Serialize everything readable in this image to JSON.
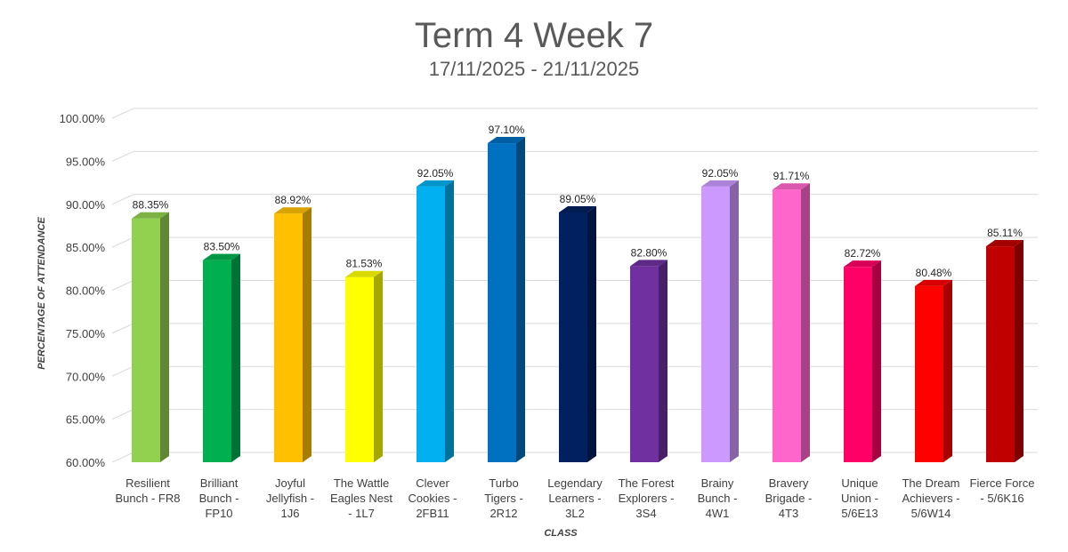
{
  "chart_data": {
    "type": "bar",
    "title": "Term 4 Week 7",
    "subtitle": "17/11/2025 - 21/11/2025",
    "xlabel": "CLASS",
    "ylabel": "PERCENTAGE OF ATTENDANCE",
    "ylim": [
      60,
      100
    ],
    "yticks": [
      "60.00%",
      "65.00%",
      "70.00%",
      "75.00%",
      "80.00%",
      "85.00%",
      "90.00%",
      "95.00%",
      "100.00%"
    ],
    "grid": true,
    "categories": [
      [
        "Resilient",
        "Bunch - FR8"
      ],
      [
        "Brilliant",
        "Bunch -",
        "FP10"
      ],
      [
        "Joyful",
        "Jellyfish -",
        "1J6"
      ],
      [
        "The Wattle",
        "Eagles Nest",
        "- 1L7"
      ],
      [
        "Clever",
        "Cookies -",
        "2FB11"
      ],
      [
        "Turbo",
        "Tigers -",
        "2R12"
      ],
      [
        "Legendary",
        "Learners -",
        "3L2"
      ],
      [
        "The Forest",
        "Explorers -",
        "3S4"
      ],
      [
        "Brainy",
        "Bunch -",
        "4W1"
      ],
      [
        "Bravery",
        "Brigade -",
        "4T3"
      ],
      [
        "Unique",
        "Union -",
        "5/6E13"
      ],
      [
        "The Dream",
        "Achievers -",
        "5/6W14"
      ],
      [
        "Fierce Force",
        "- 5/6K16"
      ]
    ],
    "values": [
      88.35,
      83.5,
      88.92,
      81.53,
      92.05,
      97.1,
      89.05,
      82.8,
      92.05,
      91.71,
      82.72,
      80.48,
      85.11
    ],
    "data_labels": [
      "88.35%",
      "83.50%",
      "88.92%",
      "81.53%",
      "92.05%",
      "97.10%",
      "89.05%",
      "82.80%",
      "92.05%",
      "91.71%",
      "82.72%",
      "80.48%",
      "85.11%"
    ],
    "colors": [
      "#92d050",
      "#00b050",
      "#ffc000",
      "#ffff00",
      "#00b0f0",
      "#0070c0",
      "#002060",
      "#7030a0",
      "#cc99ff",
      "#ff66cc",
      "#ff0066",
      "#ff0000",
      "#c00000"
    ]
  }
}
